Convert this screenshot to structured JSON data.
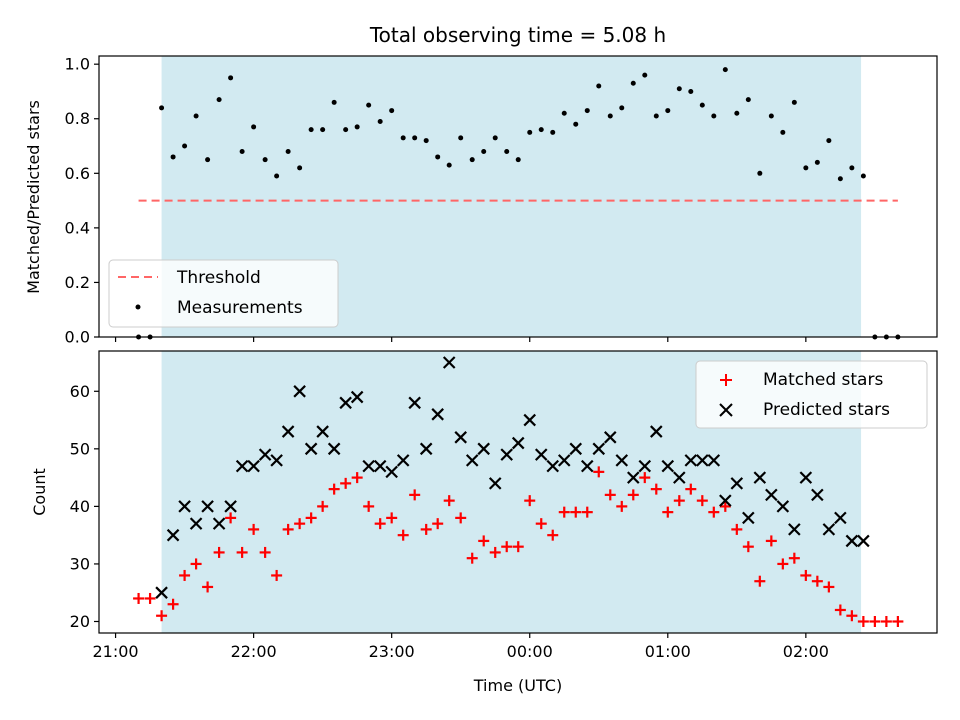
{
  "chart_data": [
    {
      "type": "scatter",
      "title": "Total observing time = 5.08 h",
      "xlabel": "",
      "ylabel": "Matched/Predicted stars",
      "ylim": [
        0,
        1.03
      ],
      "yticks": [
        "0.0",
        "0.2",
        "0.4",
        "0.6",
        "0.8",
        "1.0"
      ],
      "xlim_hours": [
        20.88,
        26.95
      ],
      "shaded_region": {
        "start": "21:20",
        "end": "02:24",
        "color": "#add8e6"
      },
      "legend": {
        "position": "bottom-left",
        "entries": [
          "Threshold",
          "Measurements"
        ]
      },
      "threshold": {
        "name": "Threshold",
        "value": 0.5,
        "x_start": "21:10",
        "x_end": "02:40",
        "color": "#ff6666"
      },
      "series": [
        {
          "name": "Measurements",
          "color": "#000000",
          "x": [
            "21:10",
            "21:15",
            "21:20",
            "21:25",
            "21:30",
            "21:35",
            "21:40",
            "21:45",
            "21:50",
            "21:55",
            "22:00",
            "22:05",
            "22:10",
            "22:15",
            "22:20",
            "22:25",
            "22:30",
            "22:35",
            "22:40",
            "22:45",
            "22:50",
            "22:55",
            "23:00",
            "23:05",
            "23:10",
            "23:15",
            "23:20",
            "23:25",
            "23:30",
            "23:35",
            "23:40",
            "23:45",
            "23:50",
            "23:55",
            "00:00",
            "00:05",
            "00:10",
            "00:15",
            "00:20",
            "00:25",
            "00:30",
            "00:35",
            "00:40",
            "00:45",
            "00:50",
            "00:55",
            "01:00",
            "01:05",
            "01:10",
            "01:15",
            "01:20",
            "01:25",
            "01:30",
            "01:35",
            "01:40",
            "01:45",
            "01:50",
            "01:55",
            "02:00",
            "02:05",
            "02:10",
            "02:15",
            "02:20",
            "02:25",
            "02:30",
            "02:35",
            "02:40"
          ],
          "y": [
            0.0,
            0.0,
            0.84,
            0.66,
            0.7,
            0.81,
            0.65,
            0.87,
            0.95,
            0.68,
            0.77,
            0.65,
            0.59,
            0.68,
            0.62,
            0.76,
            0.76,
            0.86,
            0.76,
            0.77,
            0.85,
            0.79,
            0.83,
            0.73,
            0.73,
            0.72,
            0.66,
            0.63,
            0.73,
            0.65,
            0.68,
            0.73,
            0.68,
            0.65,
            0.75,
            0.76,
            0.75,
            0.82,
            0.78,
            0.83,
            0.92,
            0.81,
            0.84,
            0.93,
            0.96,
            0.81,
            0.83,
            0.91,
            0.9,
            0.85,
            0.81,
            0.98,
            0.82,
            0.87,
            0.6,
            0.81,
            0.75,
            0.86,
            0.62,
            0.64,
            0.72,
            0.58,
            0.62,
            0.59,
            0.0,
            0.0,
            0.0
          ]
        }
      ]
    },
    {
      "type": "scatter",
      "title": "",
      "xlabel": "Time (UTC)",
      "ylabel": "Count",
      "ylim": [
        18,
        67
      ],
      "yticks": [
        "20",
        "30",
        "40",
        "50",
        "60"
      ],
      "xticks": [
        "21:00",
        "22:00",
        "23:00",
        "00:00",
        "01:00",
        "02:00"
      ],
      "xlim_hours": [
        20.88,
        26.95
      ],
      "shaded_region": {
        "start": "21:20",
        "end": "02:24",
        "color": "#add8e6"
      },
      "legend": {
        "position": "top-right",
        "entries": [
          "Matched stars",
          "Predicted stars"
        ]
      },
      "series": [
        {
          "name": "Matched stars",
          "marker": "plus",
          "color": "#ff0000",
          "x": [
            "21:10",
            "21:15",
            "21:20",
            "21:25",
            "21:30",
            "21:35",
            "21:40",
            "21:45",
            "21:50",
            "21:55",
            "22:00",
            "22:05",
            "22:10",
            "22:15",
            "22:20",
            "22:25",
            "22:30",
            "22:35",
            "22:40",
            "22:45",
            "22:50",
            "22:55",
            "23:00",
            "23:05",
            "23:10",
            "23:15",
            "23:20",
            "23:25",
            "23:30",
            "23:35",
            "23:40",
            "23:45",
            "23:50",
            "23:55",
            "00:00",
            "00:05",
            "00:10",
            "00:15",
            "00:20",
            "00:25",
            "00:30",
            "00:35",
            "00:40",
            "00:45",
            "00:50",
            "00:55",
            "01:00",
            "01:05",
            "01:10",
            "01:15",
            "01:20",
            "01:25",
            "01:30",
            "01:35",
            "01:40",
            "01:45",
            "01:50",
            "01:55",
            "02:00",
            "02:05",
            "02:10",
            "02:15",
            "02:20",
            "02:25",
            "02:30",
            "02:35",
            "02:40"
          ],
          "y": [
            24,
            24,
            21,
            23,
            28,
            30,
            26,
            32,
            38,
            32,
            36,
            32,
            28,
            36,
            37,
            38,
            40,
            43,
            44,
            45,
            40,
            37,
            38,
            35,
            42,
            36,
            37,
            41,
            38,
            31,
            34,
            32,
            33,
            33,
            41,
            37,
            35,
            39,
            39,
            39,
            46,
            42,
            40,
            42,
            45,
            43,
            39,
            41,
            43,
            41,
            39,
            40,
            36,
            33,
            27,
            34,
            30,
            31,
            28,
            27,
            26,
            22,
            21,
            20,
            20,
            20,
            20
          ]
        },
        {
          "name": "Predicted stars",
          "marker": "x",
          "color": "#000000",
          "x": [
            "21:20",
            "21:25",
            "21:30",
            "21:35",
            "21:40",
            "21:45",
            "21:50",
            "21:55",
            "22:00",
            "22:05",
            "22:10",
            "22:15",
            "22:20",
            "22:25",
            "22:30",
            "22:35",
            "22:40",
            "22:45",
            "22:50",
            "22:55",
            "23:00",
            "23:05",
            "23:10",
            "23:15",
            "23:20",
            "23:25",
            "23:30",
            "23:35",
            "23:40",
            "23:45",
            "23:50",
            "23:55",
            "00:00",
            "00:05",
            "00:10",
            "00:15",
            "00:20",
            "00:25",
            "00:30",
            "00:35",
            "00:40",
            "00:45",
            "00:50",
            "00:55",
            "01:00",
            "01:05",
            "01:10",
            "01:15",
            "01:20",
            "01:25",
            "01:30",
            "01:35",
            "01:40",
            "01:45",
            "01:50",
            "01:55",
            "02:00",
            "02:05",
            "02:10",
            "02:15",
            "02:20",
            "02:25"
          ],
          "y": [
            25,
            35,
            40,
            37,
            40,
            37,
            40,
            47,
            47,
            49,
            48,
            53,
            60,
            50,
            53,
            50,
            58,
            59,
            47,
            47,
            46,
            48,
            58,
            50,
            56,
            65,
            52,
            48,
            50,
            44,
            49,
            51,
            55,
            49,
            47,
            48,
            50,
            47,
            50,
            52,
            48,
            45,
            47,
            53,
            47,
            45,
            48,
            48,
            48,
            41,
            44,
            38,
            45,
            42,
            40,
            36,
            45,
            42,
            36,
            38,
            34,
            34
          ]
        }
      ]
    }
  ]
}
